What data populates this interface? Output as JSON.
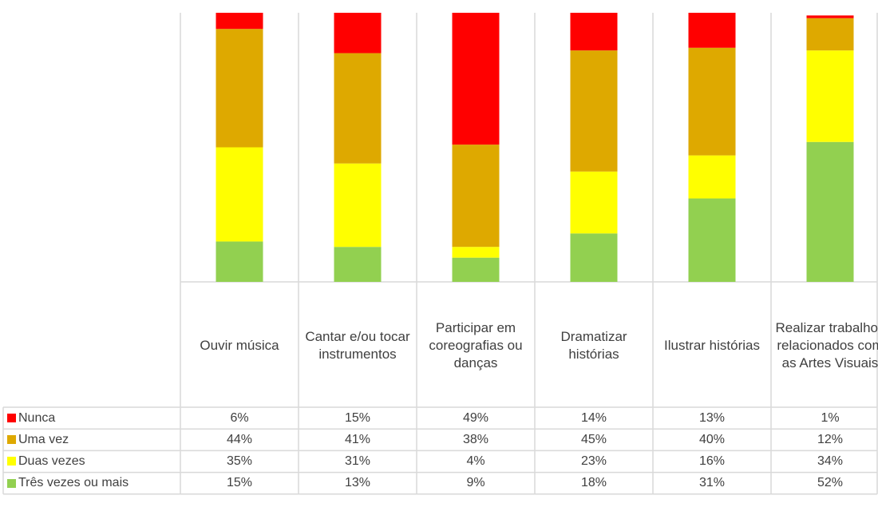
{
  "chart_data": {
    "type": "stacked_bar",
    "categories": [
      "Ouvir música",
      "Cantar e/ou tocar instrumentos",
      "Participar em coreografias ou danças",
      "Dramatizar histórias",
      "Ilustrar histórias",
      "Realizar trabalhos relacionados com as Artes Visuais"
    ],
    "ylim": [
      0,
      100
    ],
    "series": [
      {
        "name": "Três vezes ou mais",
        "color": "#92d050",
        "values": [
          15,
          13,
          9,
          18,
          31,
          52
        ],
        "value_labels": [
          "15%",
          "13%",
          "9%",
          "18%",
          "31%",
          "52%"
        ]
      },
      {
        "name": "Duas vezes",
        "color": "#ffff00",
        "values": [
          35,
          31,
          4,
          23,
          16,
          34
        ],
        "value_labels": [
          "35%",
          "31%",
          "4%",
          "23%",
          "16%",
          "34%"
        ]
      },
      {
        "name": "Uma vez",
        "color": "#dea900",
        "values": [
          44,
          41,
          38,
          45,
          40,
          12
        ],
        "value_labels": [
          "44%",
          "41%",
          "38%",
          "45%",
          "40%",
          "12%"
        ]
      },
      {
        "name": "Nunca",
        "color": "#ff0000",
        "values": [
          6,
          15,
          49,
          14,
          13,
          1
        ],
        "value_labels": [
          "6%",
          "15%",
          "49%",
          "14%",
          "13%",
          "1%"
        ]
      }
    ]
  }
}
